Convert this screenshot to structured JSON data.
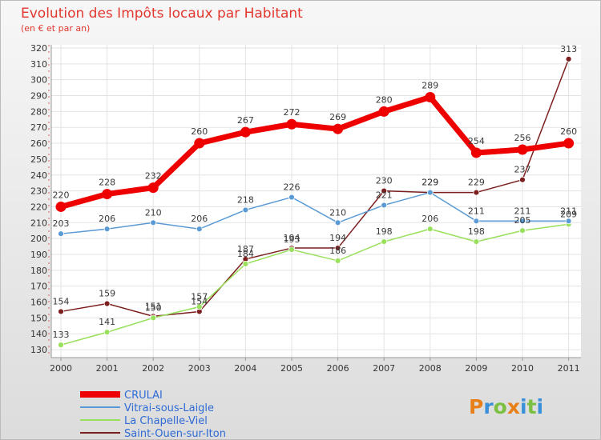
{
  "chart_data": {
    "type": "line",
    "title": "Evolution des Impôts locaux par Habitant",
    "subtitle": "(en € et par an)",
    "x": [
      "2000",
      "2001",
      "2002",
      "2003",
      "2004",
      "2005",
      "2006",
      "2007",
      "2008",
      "2009",
      "2010",
      "2011"
    ],
    "y_ticks": [
      130,
      140,
      150,
      160,
      170,
      180,
      190,
      200,
      210,
      220,
      230,
      240,
      250,
      260,
      270,
      280,
      290,
      300,
      310,
      320
    ],
    "ylim": [
      125,
      322
    ],
    "grid": true,
    "legend_position": "bottom-left",
    "series": [
      {
        "name": "CRULAI",
        "color": "#ee0000",
        "values": [
          220,
          228,
          232,
          260,
          267,
          272,
          269,
          280,
          289,
          254,
          256,
          260
        ]
      },
      {
        "name": "Vitrai-sous-Laigle",
        "color": "#5b9bd5",
        "values": [
          203,
          206,
          210,
          206,
          218,
          226,
          210,
          221,
          229,
          211,
          211,
          211
        ]
      },
      {
        "name": "La Chapelle-Viel",
        "color": "#99e05c",
        "values": [
          133,
          141,
          150,
          157,
          184,
          193,
          186,
          198,
          206,
          198,
          205,
          209
        ]
      },
      {
        "name": "Saint-Ouen-sur-Iton",
        "color": "#7b1f1f",
        "values": [
          154,
          159,
          151,
          154,
          187,
          194,
          194,
          230,
          229,
          229,
          237,
          313
        ]
      }
    ]
  },
  "logo": {
    "text": "Proxiti"
  }
}
